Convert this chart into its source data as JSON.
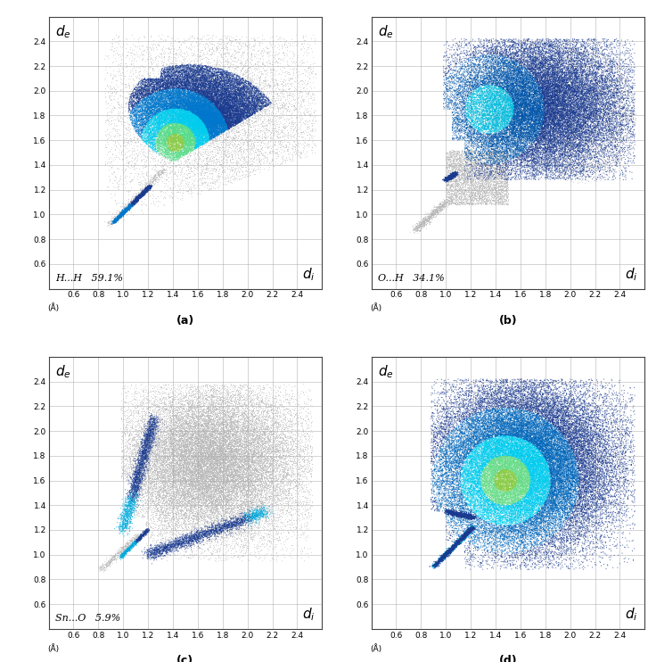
{
  "panels": [
    {
      "label": "(a)",
      "contact": "H...H",
      "percentage": "59.1%"
    },
    {
      "label": "(b)",
      "contact": "O...H",
      "percentage": "34.1%"
    },
    {
      "label": "(c)",
      "contact": "Sn...O",
      "percentage": "5.9%"
    },
    {
      "label": "(d)",
      "contact": "",
      "percentage": ""
    }
  ],
  "xticks": [
    0.6,
    0.8,
    1.0,
    1.2,
    1.4,
    1.6,
    1.8,
    2.0,
    2.2,
    2.4
  ],
  "yticks": [
    0.6,
    0.8,
    1.0,
    1.2,
    1.4,
    1.6,
    1.8,
    2.0,
    2.2,
    2.4
  ],
  "xlim": [
    0.4,
    2.6
  ],
  "ylim": [
    0.4,
    2.6
  ],
  "blue_dark": "#1a3a8f",
  "blue_mid": "#1565c0",
  "blue_light": "#0090d0",
  "cyan": "#00ccee",
  "green": "#88cc44",
  "gray": "#b8b8b8",
  "gray_light": "#cccccc",
  "grid_color": "#aaaaaa",
  "figsize": [
    7.27,
    7.42
  ],
  "dpi": 100
}
